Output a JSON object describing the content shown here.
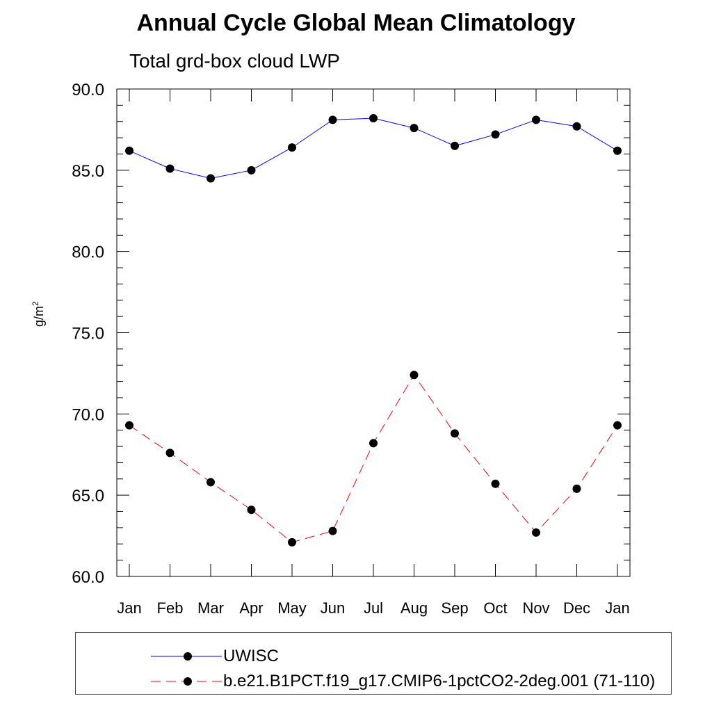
{
  "chart_data": {
    "type": "line",
    "title": "Annual Cycle Global Mean Climatology",
    "subtitle": "Total grd-box cloud LWP",
    "ylabel": "g/m",
    "ylabel_sup": "2",
    "ylim": [
      60.0,
      90.0
    ],
    "yticks": [
      "60.0",
      "65.0",
      "70.0",
      "75.0",
      "80.0",
      "85.0",
      "90.0"
    ],
    "categories": [
      "Jan",
      "Feb",
      "Mar",
      "Apr",
      "May",
      "Jun",
      "Jul",
      "Aug",
      "Sep",
      "Oct",
      "Nov",
      "Dec",
      "Jan"
    ],
    "series": [
      {
        "name": "UWISC",
        "color": "#0000ff",
        "dashed": false,
        "values": [
          86.2,
          85.1,
          84.5,
          85.0,
          86.4,
          88.1,
          88.2,
          87.6,
          86.5,
          87.2,
          88.1,
          87.7,
          86.2
        ]
      },
      {
        "name": "b.e21.B1PCT.f19_g17.CMIP6-1pctCO2-2deg.001 (71-110)",
        "color": "#ff0000",
        "dashed": true,
        "values": [
          69.3,
          67.6,
          65.8,
          64.1,
          62.1,
          62.8,
          68.2,
          72.4,
          68.8,
          65.7,
          62.7,
          65.4,
          69.3
        ]
      }
    ]
  }
}
